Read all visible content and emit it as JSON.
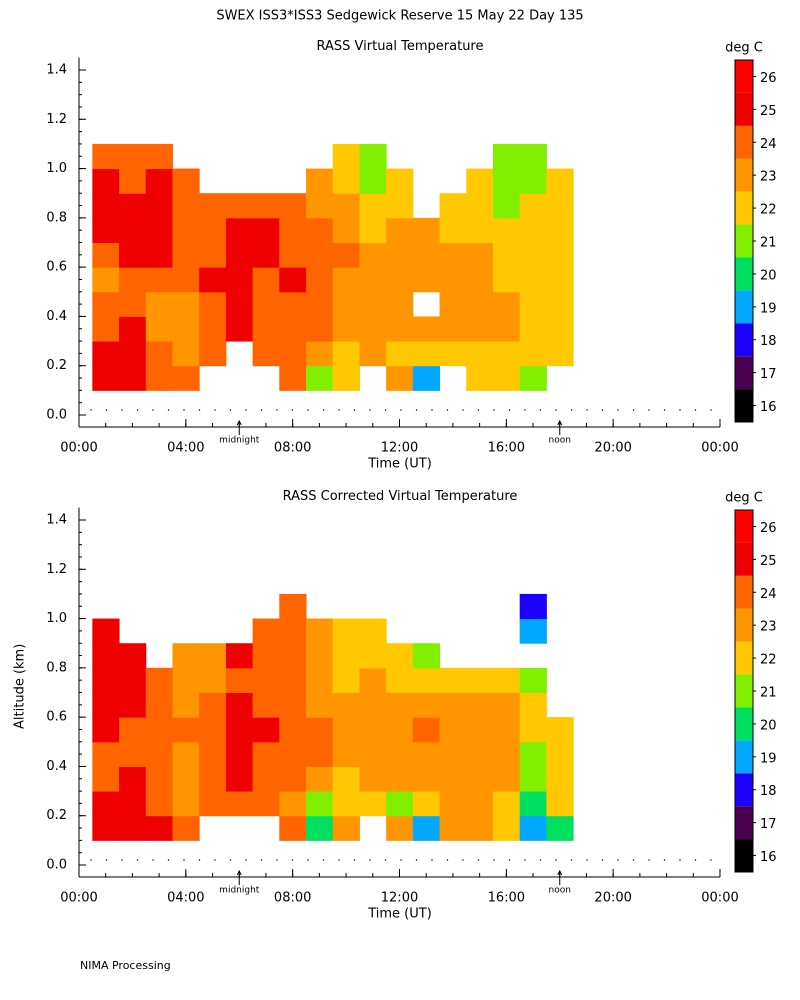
{
  "title": "SWEX ISS3*ISS3 Sedgewick Reserve  15 May 22 Day 135",
  "footer": "NIMA Processing",
  "chart_data": [
    {
      "type": "heatmap",
      "title": "RASS Virtual Temperature",
      "xlabel": "Time (UT)",
      "xlim": [
        0,
        24
      ],
      "ylim": [
        0,
        1.45
      ],
      "xticks": [
        {
          "value": 0,
          "label": "00:00"
        },
        {
          "value": 4,
          "label": "04:00"
        },
        {
          "value": 8,
          "label": "08:00"
        },
        {
          "value": 12,
          "label": "12:00"
        },
        {
          "value": 16,
          "label": "16:00"
        },
        {
          "value": 20,
          "label": "20:00"
        },
        {
          "value": 24,
          "label": "00:00"
        }
      ],
      "yticks": [
        {
          "value": 0,
          "label": "0.0"
        },
        {
          "value": 0.2,
          "label": "0.2"
        },
        {
          "value": 0.4,
          "label": "0.4"
        },
        {
          "value": 0.6,
          "label": "0.6"
        },
        {
          "value": 0.8,
          "label": "0.8"
        },
        {
          "value": 1.0,
          "label": "1.0"
        },
        {
          "value": 1.2,
          "label": "1.2"
        },
        {
          "value": 1.4,
          "label": "1.4"
        }
      ],
      "markers": [
        {
          "value": 6,
          "label": "midnight"
        },
        {
          "value": 18,
          "label": "noon"
        }
      ],
      "x": [
        1,
        2,
        3,
        4,
        5,
        6,
        7,
        8,
        9,
        10,
        11,
        12,
        13,
        14,
        15,
        16,
        17,
        18
      ],
      "y": [
        0.15,
        0.25,
        0.35,
        0.45,
        0.55,
        0.65,
        0.75,
        0.85,
        0.95,
        1.05
      ],
      "z": [
        [
          25,
          25,
          24,
          24,
          null,
          null,
          null,
          24,
          21,
          22,
          null,
          23,
          19,
          null,
          22,
          22,
          21,
          null
        ],
        [
          25,
          25,
          24,
          23,
          24,
          null,
          24,
          24,
          23,
          22,
          23,
          22,
          22,
          22,
          22,
          22,
          22,
          22
        ],
        [
          24,
          25,
          23,
          23,
          24,
          25,
          24,
          24,
          24,
          23,
          23,
          23,
          23,
          23,
          23,
          23,
          22,
          22
        ],
        [
          24,
          24,
          23,
          23,
          24,
          25,
          24,
          24,
          24,
          23,
          23,
          23,
          null,
          23,
          23,
          23,
          22,
          22
        ],
        [
          23,
          24,
          24,
          24,
          25,
          25,
          24,
          25,
          24,
          23,
          23,
          23,
          23,
          23,
          23,
          22,
          22,
          22
        ],
        [
          24,
          25,
          25,
          24,
          24,
          25,
          25,
          24,
          24,
          24,
          23,
          23,
          23,
          23,
          23,
          22,
          22,
          22
        ],
        [
          25,
          25,
          25,
          24,
          24,
          25,
          25,
          24,
          24,
          23,
          22,
          23,
          23,
          22,
          22,
          22,
          22,
          22
        ],
        [
          25,
          25,
          25,
          24,
          24,
          24,
          24,
          24,
          23,
          23,
          22,
          22,
          null,
          22,
          22,
          21,
          22,
          22
        ],
        [
          25,
          24,
          25,
          24,
          null,
          null,
          null,
          null,
          23,
          22,
          21,
          22,
          null,
          null,
          22,
          21,
          21,
          22
        ],
        [
          24,
          24,
          24,
          null,
          null,
          null,
          null,
          null,
          null,
          22,
          21,
          null,
          null,
          null,
          null,
          21,
          21,
          null
        ]
      ],
      "colorbar": {
        "label": "deg C",
        "levels": [
          16,
          17,
          18,
          19,
          20,
          21,
          22,
          23,
          24,
          25,
          26
        ],
        "colors": [
          "#000000",
          "#4b0050",
          "#1e00ff",
          "#00a8ff",
          "#00e060",
          "#80f000",
          "#ffc800",
          "#ff9600",
          "#ff6400",
          "#ee0000",
          "#ff0000"
        ]
      }
    },
    {
      "type": "heatmap",
      "title": "RASS Corrected Virtual Temperature",
      "xlabel": "Time (UT)",
      "ylabel": "Altitude (km)",
      "xlim": [
        0,
        24
      ],
      "ylim": [
        0,
        1.45
      ],
      "xticks": [
        {
          "value": 0,
          "label": "00:00"
        },
        {
          "value": 4,
          "label": "04:00"
        },
        {
          "value": 8,
          "label": "08:00"
        },
        {
          "value": 12,
          "label": "12:00"
        },
        {
          "value": 16,
          "label": "16:00"
        },
        {
          "value": 20,
          "label": "20:00"
        },
        {
          "value": 24,
          "label": "00:00"
        }
      ],
      "yticks": [
        {
          "value": 0,
          "label": "0.0"
        },
        {
          "value": 0.2,
          "label": "0.2"
        },
        {
          "value": 0.4,
          "label": "0.4"
        },
        {
          "value": 0.6,
          "label": "0.6"
        },
        {
          "value": 0.8,
          "label": "0.8"
        },
        {
          "value": 1.0,
          "label": "1.0"
        },
        {
          "value": 1.2,
          "label": "1.2"
        },
        {
          "value": 1.4,
          "label": "1.4"
        }
      ],
      "markers": [
        {
          "value": 6,
          "label": "midnight"
        },
        {
          "value": 18,
          "label": "noon"
        }
      ],
      "x": [
        1,
        2,
        3,
        4,
        5,
        6,
        7,
        8,
        9,
        10,
        11,
        12,
        13,
        14,
        15,
        16,
        17,
        18
      ],
      "y": [
        0.15,
        0.25,
        0.35,
        0.45,
        0.55,
        0.65,
        0.75,
        0.85,
        0.95,
        1.05
      ],
      "z": [
        [
          25,
          25,
          25,
          24,
          null,
          null,
          null,
          24,
          20,
          23,
          null,
          23,
          19,
          23,
          23,
          22,
          19,
          20
        ],
        [
          25,
          25,
          24,
          23,
          24,
          24,
          24,
          23,
          21,
          22,
          22,
          21,
          22,
          23,
          23,
          22,
          20,
          22
        ],
        [
          24,
          25,
          24,
          23,
          24,
          25,
          24,
          24,
          23,
          22,
          23,
          23,
          23,
          23,
          23,
          23,
          21,
          22
        ],
        [
          24,
          24,
          24,
          23,
          24,
          25,
          24,
          24,
          24,
          23,
          23,
          23,
          23,
          23,
          23,
          23,
          21,
          22
        ],
        [
          25,
          24,
          24,
          24,
          24,
          25,
          25,
          24,
          24,
          23,
          23,
          23,
          24,
          23,
          23,
          23,
          22,
          22
        ],
        [
          25,
          25,
          24,
          23,
          24,
          25,
          24,
          24,
          23,
          23,
          23,
          23,
          23,
          23,
          23,
          23,
          22,
          null
        ],
        [
          25,
          25,
          24,
          23,
          23,
          24,
          24,
          24,
          23,
          22,
          23,
          22,
          22,
          22,
          22,
          22,
          21,
          null
        ],
        [
          25,
          25,
          null,
          23,
          23,
          25,
          24,
          24,
          23,
          22,
          22,
          22,
          21,
          null,
          null,
          null,
          null,
          null
        ],
        [
          25,
          null,
          null,
          null,
          null,
          null,
          24,
          24,
          23,
          22,
          22,
          null,
          null,
          null,
          null,
          null,
          19,
          null
        ],
        [
          null,
          null,
          null,
          null,
          null,
          null,
          null,
          24,
          null,
          null,
          null,
          null,
          null,
          null,
          null,
          null,
          18,
          null
        ]
      ],
      "colorbar": {
        "label": "deg C",
        "levels": [
          16,
          17,
          18,
          19,
          20,
          21,
          22,
          23,
          24,
          25,
          26
        ],
        "colors": [
          "#000000",
          "#4b0050",
          "#1e00ff",
          "#00a8ff",
          "#00e060",
          "#80f000",
          "#ffc800",
          "#ff9600",
          "#ff6400",
          "#ee0000",
          "#ff0000"
        ]
      }
    }
  ]
}
